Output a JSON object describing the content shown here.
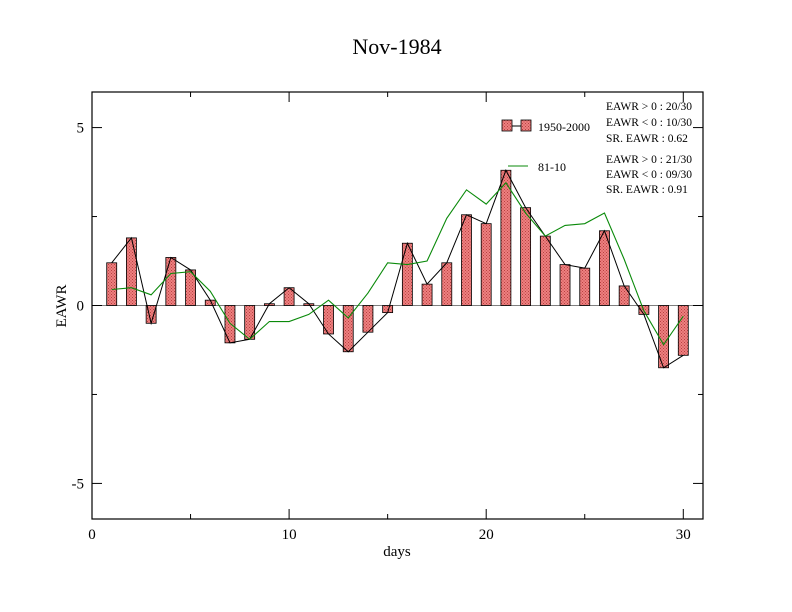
{
  "chart_data": {
    "type": "bar",
    "title": "Nov-1984",
    "xlabel": "days",
    "ylabel": "EAWR",
    "xlim": [
      0,
      31
    ],
    "ylim": [
      -6,
      6
    ],
    "x_ticks": [
      0,
      10,
      20,
      30
    ],
    "y_ticks": [
      -5,
      0,
      5
    ],
    "grid": false,
    "legend_placement": "top-right",
    "colors": {
      "bar_fill": "#e87878",
      "bar_stroke": "#000000",
      "line_81_10": "#0a8a0a",
      "bar_line": "#000000"
    },
    "series": [
      {
        "name": "1950-2000",
        "type": "bar",
        "x": [
          1,
          2,
          3,
          4,
          5,
          6,
          7,
          8,
          9,
          10,
          11,
          12,
          13,
          14,
          15,
          16,
          17,
          18,
          19,
          20,
          21,
          22,
          23,
          24,
          25,
          26,
          27,
          28,
          29,
          30
        ],
        "values": [
          1.2,
          1.9,
          -0.5,
          1.35,
          1.0,
          0.15,
          -1.05,
          -0.95,
          0.05,
          0.5,
          0.05,
          -0.8,
          -1.3,
          -0.75,
          -0.2,
          1.75,
          0.6,
          1.2,
          2.55,
          2.3,
          3.8,
          2.75,
          1.95,
          1.15,
          1.05,
          2.1,
          0.55,
          -0.25,
          -1.75,
          -1.4
        ]
      },
      {
        "name": "81-10",
        "type": "line",
        "x": [
          1,
          2,
          3,
          4,
          5,
          6,
          7,
          8,
          9,
          10,
          11,
          12,
          13,
          14,
          15,
          16,
          17,
          18,
          19,
          20,
          21,
          22,
          23,
          24,
          25,
          26,
          27,
          28,
          29,
          30
        ],
        "values": [
          0.45,
          0.5,
          0.3,
          0.9,
          0.95,
          0.4,
          -0.5,
          -0.95,
          -0.45,
          -0.45,
          -0.25,
          0.15,
          -0.35,
          0.35,
          1.2,
          1.15,
          1.25,
          2.45,
          3.25,
          2.85,
          3.45,
          2.6,
          1.95,
          2.25,
          2.3,
          2.6,
          1.3,
          -0.15,
          -1.1,
          -0.3
        ]
      }
    ],
    "annotations": {
      "group1": [
        "EAWR > 0 : 20/30",
        "EAWR < 0 : 10/30",
        "SR. EAWR :  0.62"
      ],
      "group2": [
        "EAWR > 0 : 21/30",
        "EAWR < 0 : 09/30",
        "SR. EAWR :  0.91"
      ]
    }
  }
}
